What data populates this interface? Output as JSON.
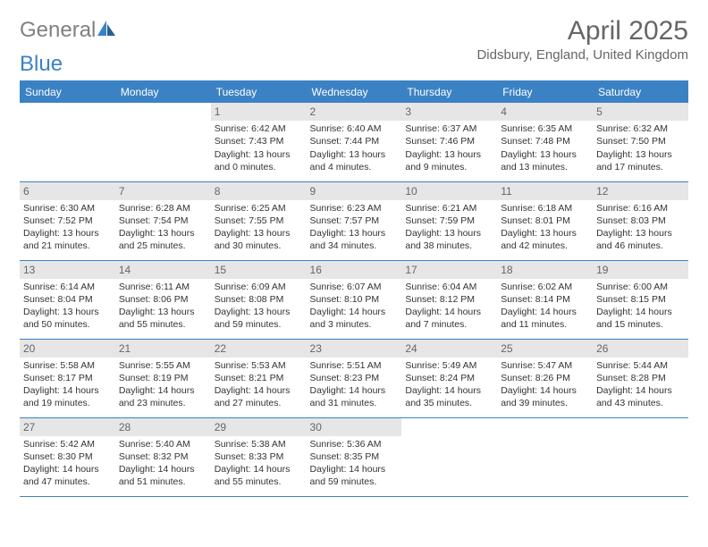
{
  "logo": {
    "text_gray": "General",
    "text_blue": "Blue"
  },
  "title": "April 2025",
  "location": "Didsbury, England, United Kingdom",
  "colors": {
    "header_bg": "#3b82c4",
    "header_text": "#ffffff",
    "daynum_bg": "#e6e6e6",
    "daynum_text": "#666666",
    "border": "#3b82c4",
    "logo_gray": "#808080",
    "logo_blue": "#3b82c4",
    "body_text": "#333333",
    "title_text": "#666666"
  },
  "day_headers": [
    "Sunday",
    "Monday",
    "Tuesday",
    "Wednesday",
    "Thursday",
    "Friday",
    "Saturday"
  ],
  "weeks": [
    [
      null,
      null,
      {
        "n": "1",
        "sr": "6:42 AM",
        "ss": "7:43 PM",
        "dl": "13 hours and 0 minutes."
      },
      {
        "n": "2",
        "sr": "6:40 AM",
        "ss": "7:44 PM",
        "dl": "13 hours and 4 minutes."
      },
      {
        "n": "3",
        "sr": "6:37 AM",
        "ss": "7:46 PM",
        "dl": "13 hours and 9 minutes."
      },
      {
        "n": "4",
        "sr": "6:35 AM",
        "ss": "7:48 PM",
        "dl": "13 hours and 13 minutes."
      },
      {
        "n": "5",
        "sr": "6:32 AM",
        "ss": "7:50 PM",
        "dl": "13 hours and 17 minutes."
      }
    ],
    [
      {
        "n": "6",
        "sr": "6:30 AM",
        "ss": "7:52 PM",
        "dl": "13 hours and 21 minutes."
      },
      {
        "n": "7",
        "sr": "6:28 AM",
        "ss": "7:54 PM",
        "dl": "13 hours and 25 minutes."
      },
      {
        "n": "8",
        "sr": "6:25 AM",
        "ss": "7:55 PM",
        "dl": "13 hours and 30 minutes."
      },
      {
        "n": "9",
        "sr": "6:23 AM",
        "ss": "7:57 PM",
        "dl": "13 hours and 34 minutes."
      },
      {
        "n": "10",
        "sr": "6:21 AM",
        "ss": "7:59 PM",
        "dl": "13 hours and 38 minutes."
      },
      {
        "n": "11",
        "sr": "6:18 AM",
        "ss": "8:01 PM",
        "dl": "13 hours and 42 minutes."
      },
      {
        "n": "12",
        "sr": "6:16 AM",
        "ss": "8:03 PM",
        "dl": "13 hours and 46 minutes."
      }
    ],
    [
      {
        "n": "13",
        "sr": "6:14 AM",
        "ss": "8:04 PM",
        "dl": "13 hours and 50 minutes."
      },
      {
        "n": "14",
        "sr": "6:11 AM",
        "ss": "8:06 PM",
        "dl": "13 hours and 55 minutes."
      },
      {
        "n": "15",
        "sr": "6:09 AM",
        "ss": "8:08 PM",
        "dl": "13 hours and 59 minutes."
      },
      {
        "n": "16",
        "sr": "6:07 AM",
        "ss": "8:10 PM",
        "dl": "14 hours and 3 minutes."
      },
      {
        "n": "17",
        "sr": "6:04 AM",
        "ss": "8:12 PM",
        "dl": "14 hours and 7 minutes."
      },
      {
        "n": "18",
        "sr": "6:02 AM",
        "ss": "8:14 PM",
        "dl": "14 hours and 11 minutes."
      },
      {
        "n": "19",
        "sr": "6:00 AM",
        "ss": "8:15 PM",
        "dl": "14 hours and 15 minutes."
      }
    ],
    [
      {
        "n": "20",
        "sr": "5:58 AM",
        "ss": "8:17 PM",
        "dl": "14 hours and 19 minutes."
      },
      {
        "n": "21",
        "sr": "5:55 AM",
        "ss": "8:19 PM",
        "dl": "14 hours and 23 minutes."
      },
      {
        "n": "22",
        "sr": "5:53 AM",
        "ss": "8:21 PM",
        "dl": "14 hours and 27 minutes."
      },
      {
        "n": "23",
        "sr": "5:51 AM",
        "ss": "8:23 PM",
        "dl": "14 hours and 31 minutes."
      },
      {
        "n": "24",
        "sr": "5:49 AM",
        "ss": "8:24 PM",
        "dl": "14 hours and 35 minutes."
      },
      {
        "n": "25",
        "sr": "5:47 AM",
        "ss": "8:26 PM",
        "dl": "14 hours and 39 minutes."
      },
      {
        "n": "26",
        "sr": "5:44 AM",
        "ss": "8:28 PM",
        "dl": "14 hours and 43 minutes."
      }
    ],
    [
      {
        "n": "27",
        "sr": "5:42 AM",
        "ss": "8:30 PM",
        "dl": "14 hours and 47 minutes."
      },
      {
        "n": "28",
        "sr": "5:40 AM",
        "ss": "8:32 PM",
        "dl": "14 hours and 51 minutes."
      },
      {
        "n": "29",
        "sr": "5:38 AM",
        "ss": "8:33 PM",
        "dl": "14 hours and 55 minutes."
      },
      {
        "n": "30",
        "sr": "5:36 AM",
        "ss": "8:35 PM",
        "dl": "14 hours and 59 minutes."
      },
      null,
      null,
      null
    ]
  ],
  "labels": {
    "sunrise": "Sunrise:",
    "sunset": "Sunset:",
    "daylight": "Daylight:"
  }
}
